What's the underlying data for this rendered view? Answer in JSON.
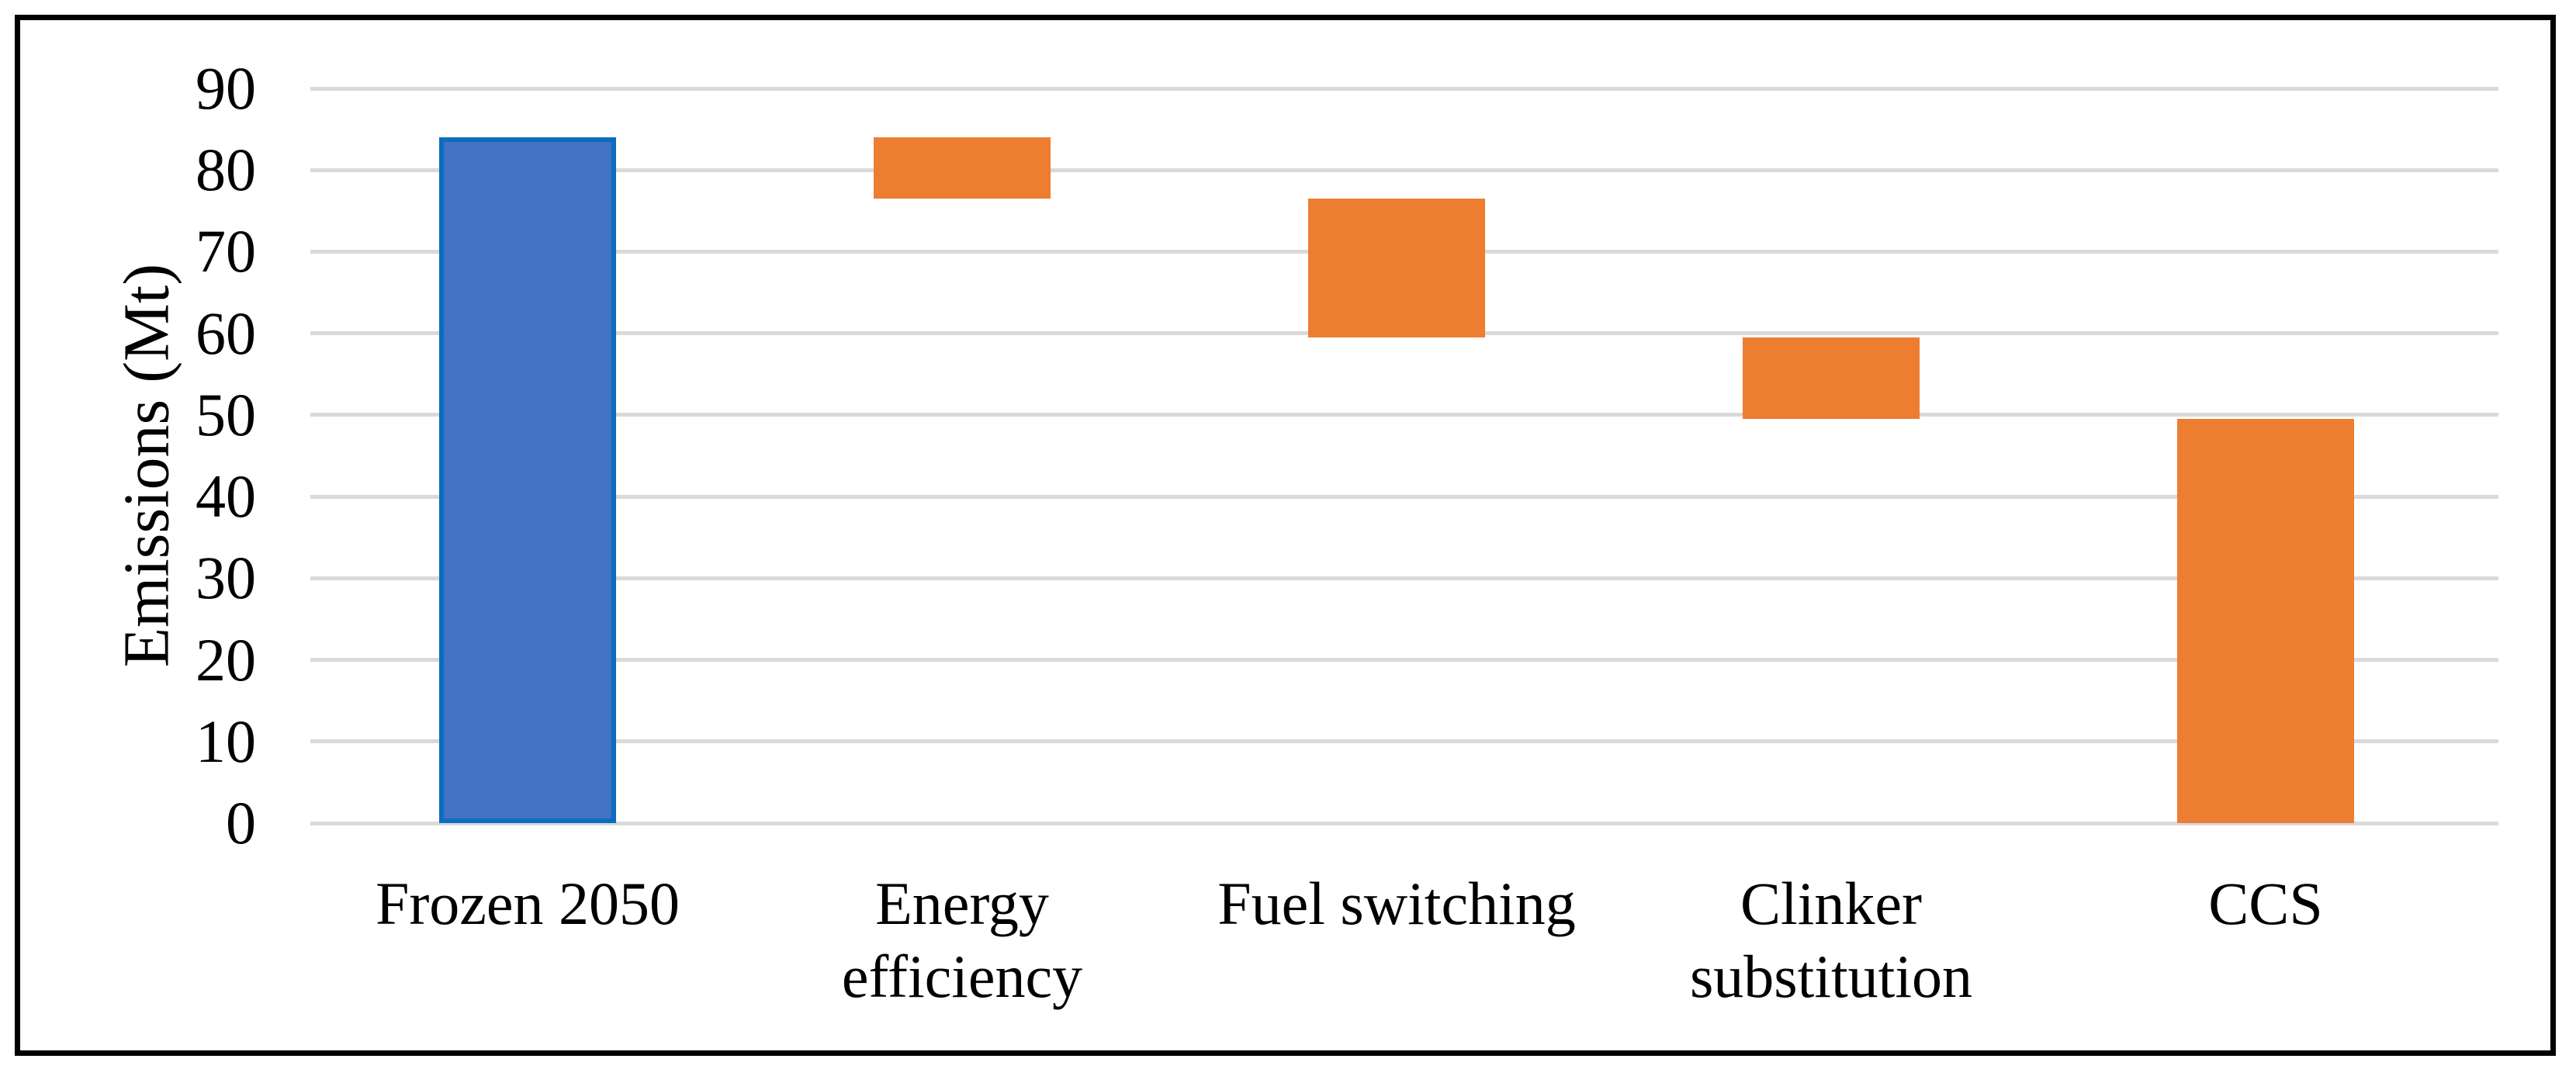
{
  "figure": {
    "kind": "waterfall chart",
    "background": "#FFFFFF",
    "frame_border_color": "#000000"
  },
  "chart_data": {
    "type": "bar",
    "variant": "waterfall",
    "title": "",
    "xlabel": "",
    "ylabel": "Emissions (Mt)",
    "ylim": [
      0,
      90
    ],
    "yticks": [
      90,
      80,
      70,
      60,
      50,
      40,
      30,
      20,
      10,
      0
    ],
    "grid": "horizontal",
    "legend": "none",
    "categories": [
      "Frozen 2050",
      "Energy\nefficiency",
      "Fuel switching",
      "Clinker\nsubstitution",
      "CCS"
    ],
    "series": [
      {
        "name": "Frozen 2050",
        "start": 0,
        "end": 84,
        "delta": 84,
        "role": "total",
        "fill": "#4472C4",
        "border": "#0B6DBD"
      },
      {
        "name": "Energy efficiency",
        "start": 84,
        "end": 76.5,
        "delta": -7.5,
        "role": "decrease",
        "fill": "#ED7D31",
        "border": "none"
      },
      {
        "name": "Fuel switching",
        "start": 76.5,
        "end": 59.5,
        "delta": -17,
        "role": "decrease",
        "fill": "#ED7D31",
        "border": "none"
      },
      {
        "name": "Clinker substitution",
        "start": 59.5,
        "end": 49.5,
        "delta": -10,
        "role": "decrease",
        "fill": "#ED7D31",
        "border": "none"
      },
      {
        "name": "CCS",
        "start": 49.5,
        "end": 0,
        "delta": -49.5,
        "role": "decrease",
        "fill": "#ED7D31",
        "border": "none"
      }
    ]
  },
  "colors": {
    "bar_blue_fill": "#4472C4",
    "bar_blue_border": "#0B6DBD",
    "bar_orange_fill": "#ED7D31",
    "gridline": "#D9D9D9",
    "text": "#000000",
    "frame": "#000000"
  }
}
